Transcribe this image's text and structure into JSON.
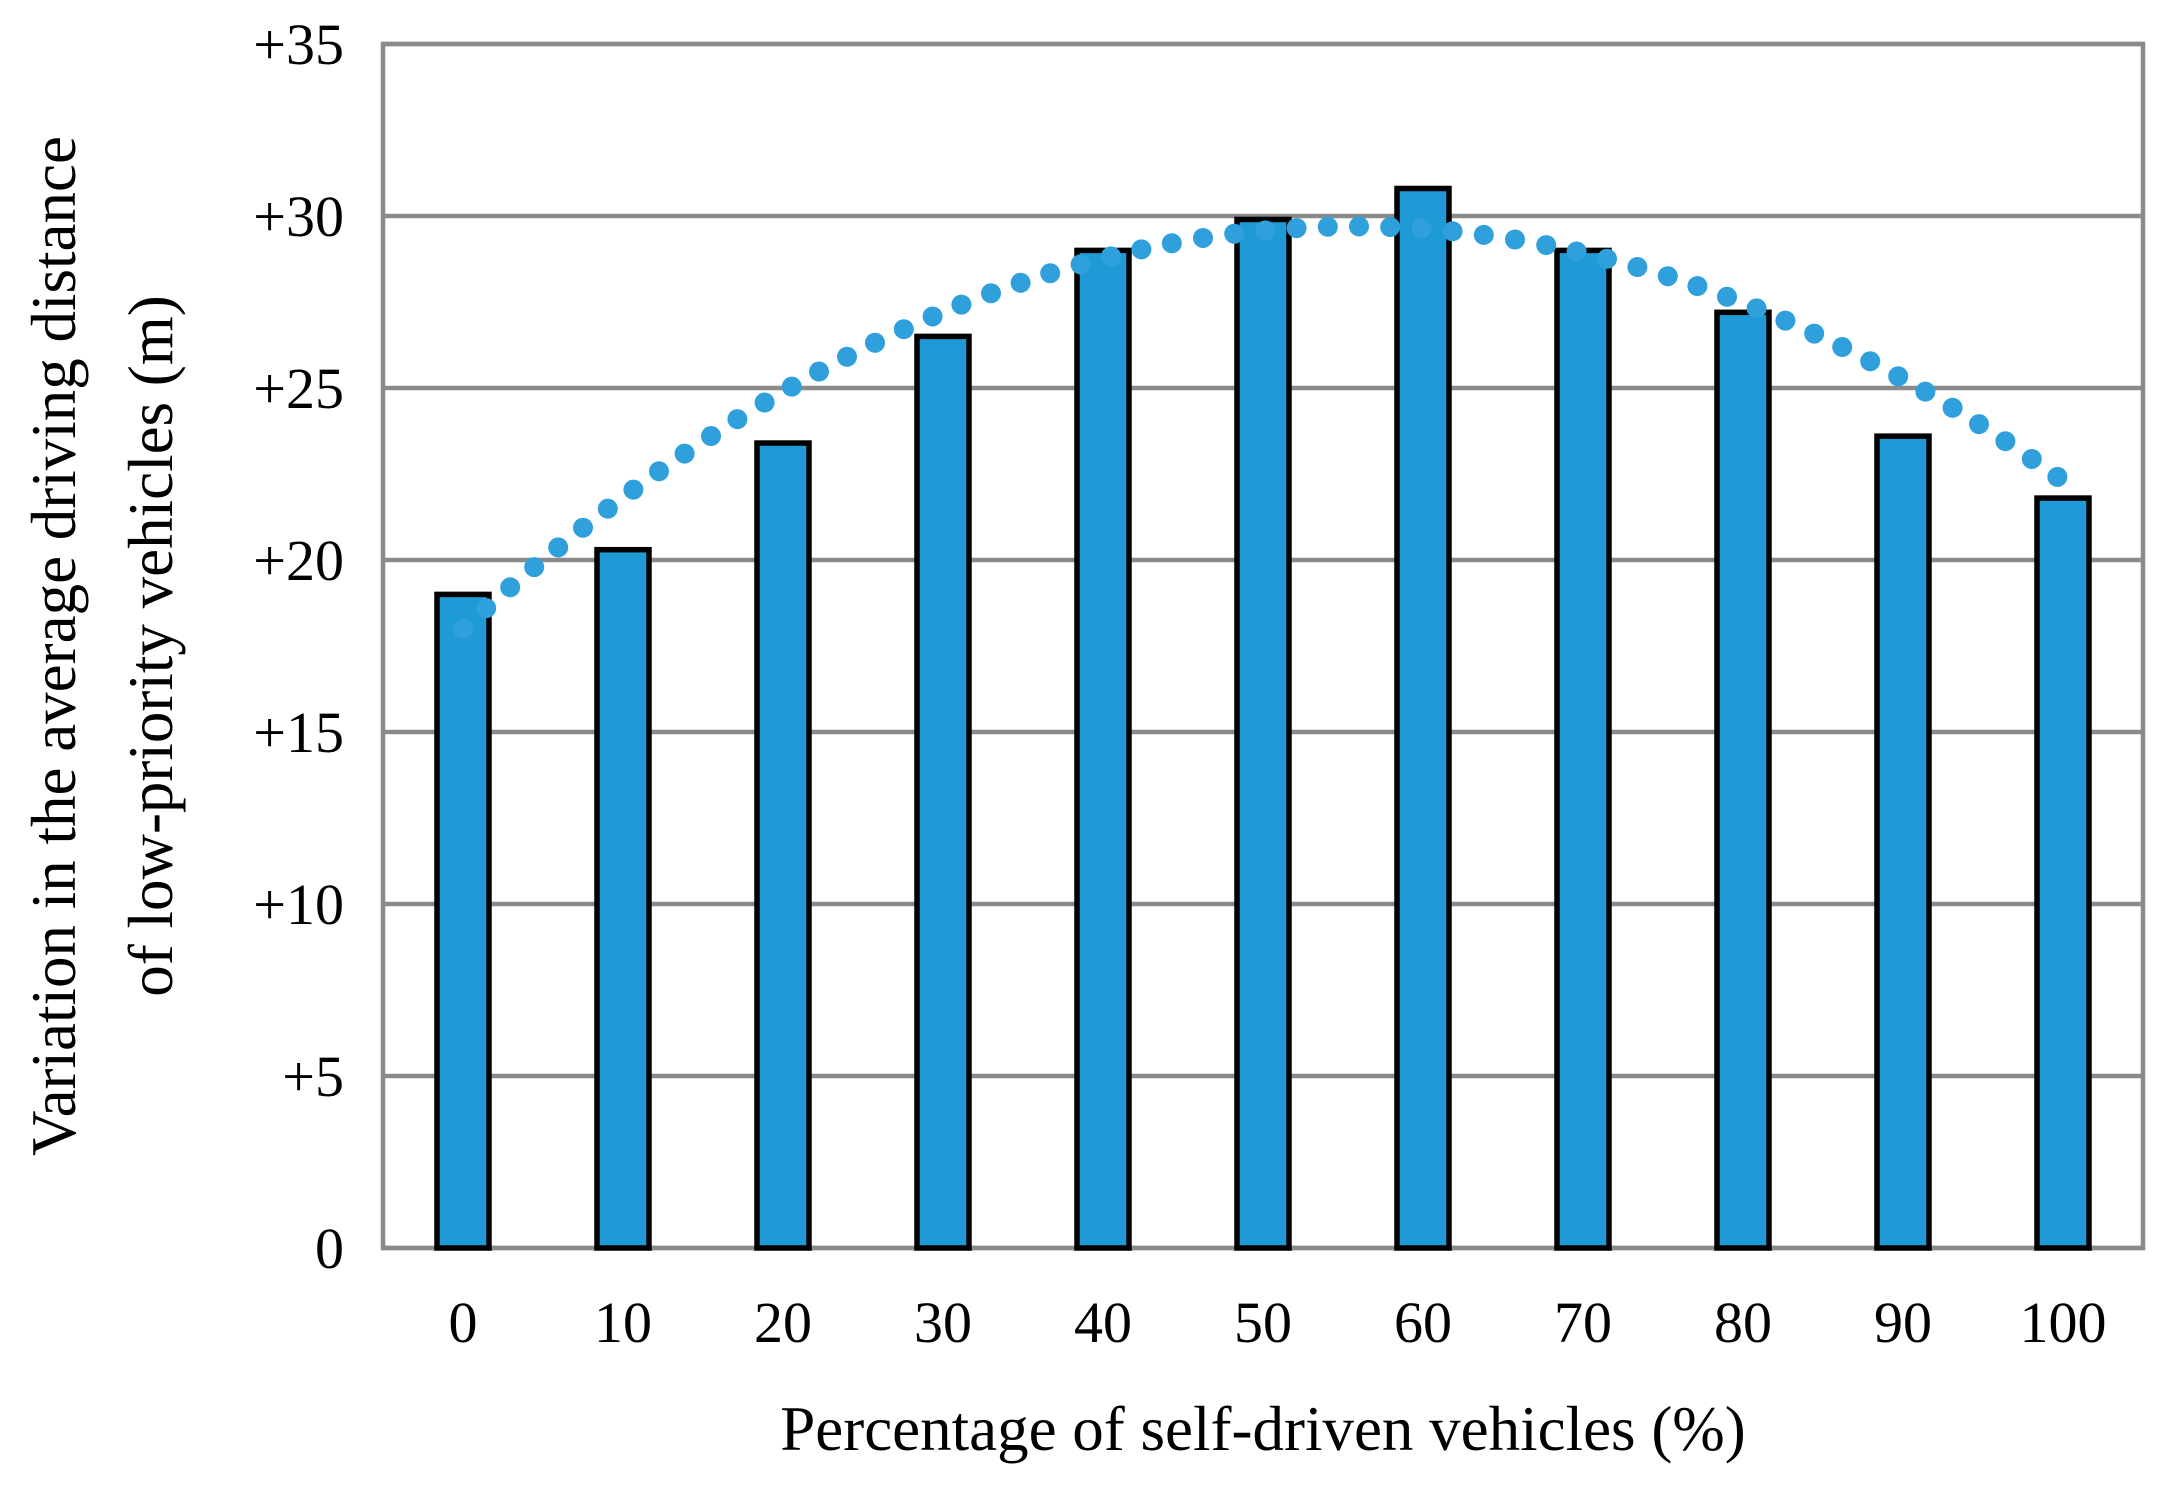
{
  "figure": {
    "y_axis": {
      "title_line1": "Variation in the average driving distance",
      "title_line2": "of low-priority vehicles (m)",
      "tick_labels": [
        "+35",
        "+30",
        "+25",
        "+20",
        "+15",
        "+10",
        "+5",
        "0"
      ]
    },
    "x_axis": {
      "title": "Percentage of self-driven vehicles (%)",
      "tick_labels": [
        "0",
        "10",
        "20",
        "30",
        "40",
        "50",
        "60",
        "70",
        "80",
        "90",
        "100"
      ]
    },
    "colors": {
      "bar_fill": "#1E9AD6",
      "bar_border": "#000000",
      "trend_dot": "#2FA0DB",
      "gridline": "#8A8A8A",
      "text": "#000000",
      "background": "#FFFFFF"
    }
  },
  "chart_data": {
    "type": "bar",
    "categories": [
      0,
      10,
      20,
      30,
      40,
      50,
      60,
      70,
      80,
      90,
      100
    ],
    "values": [
      19.0,
      20.3,
      23.4,
      26.5,
      29.0,
      29.9,
      30.8,
      29.0,
      27.2,
      23.6,
      21.8
    ],
    "series": [
      {
        "name": "Variation in average driving distance",
        "type": "bar",
        "values": [
          19.0,
          20.3,
          23.4,
          26.5,
          29.0,
          29.9,
          30.8,
          29.0,
          27.2,
          23.6,
          21.8
        ]
      },
      {
        "name": "Polynomial trendline",
        "type": "dotted-line",
        "values": [
          18.0,
          21.8,
          24.9,
          27.2,
          28.8,
          29.6,
          29.6,
          28.9,
          27.5,
          25.3,
          22.3
        ],
        "coefficients": {
          "a": 18.0,
          "b": 0.42,
          "c": -0.00377
        }
      }
    ],
    "title": "",
    "xlabel": "Percentage of self-driven vehicles (%)",
    "ylabel": "Variation in the average driving distance of low-priority vehicles (m)",
    "ylim": [
      0,
      35
    ],
    "ytick_step": 5,
    "ytick_format": "plus-prefix",
    "grid": "horizontal",
    "legend_position": "none"
  }
}
